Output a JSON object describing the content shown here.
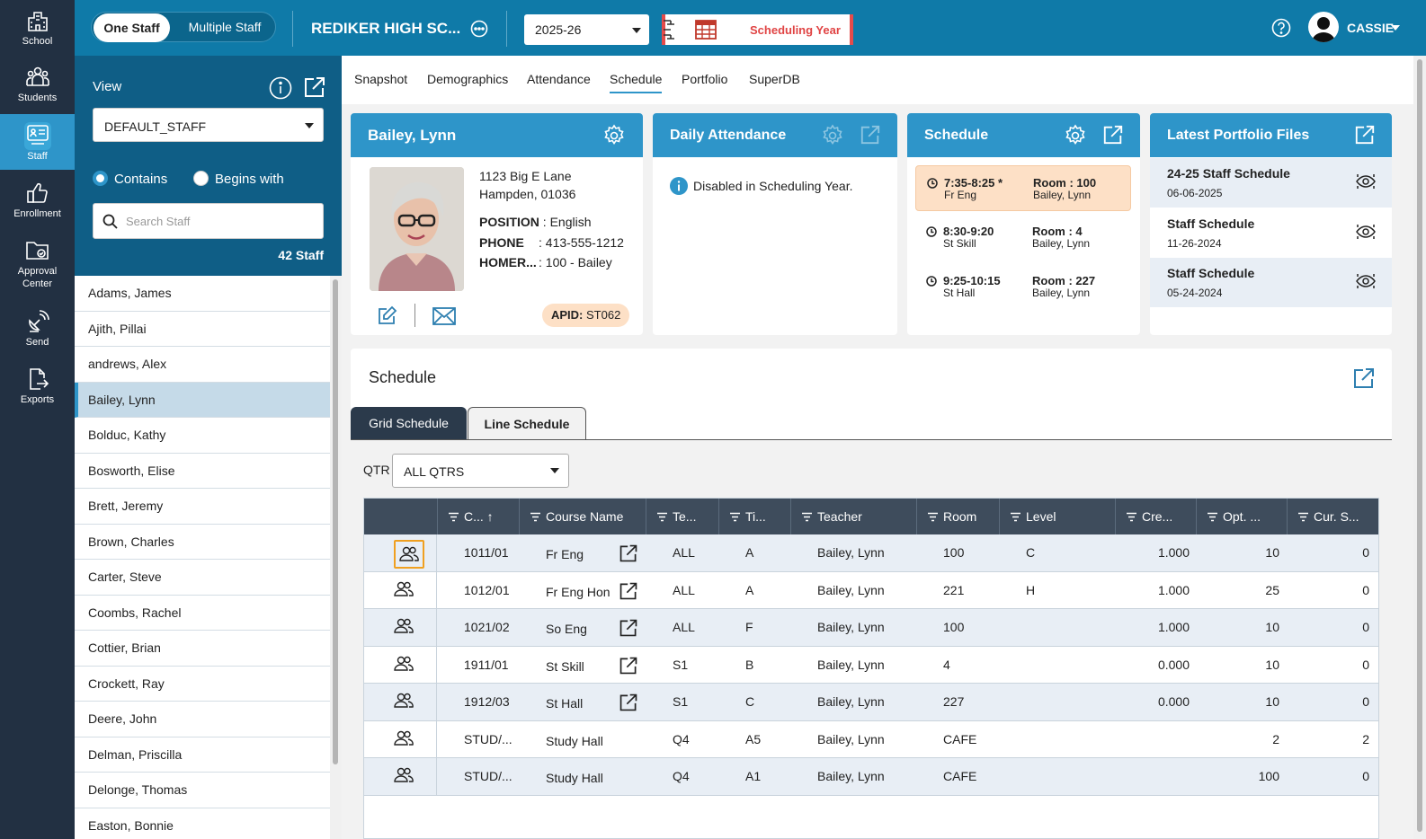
{
  "rail": [
    {
      "label": "School",
      "icon": "school-icon"
    },
    {
      "label": "Students",
      "icon": "students-icon"
    },
    {
      "label": "Staff",
      "icon": "staff-icon"
    },
    {
      "label": "Enrollment",
      "icon": "thumbs-up-icon"
    },
    {
      "label1": "Approval",
      "label2": "Center",
      "icon": "folder-icon"
    },
    {
      "label": "Send",
      "icon": "satellite-icon"
    },
    {
      "label": "Exports",
      "icon": "export-file-icon"
    }
  ],
  "header": {
    "one_staff": "One Staff",
    "multiple_staff": "Multiple Staff",
    "school": "REDIKER HIGH SC...",
    "year": "2025-26",
    "scheduling_year": "Scheduling Year",
    "user": "CASSIE"
  },
  "sidebar": {
    "view_label": "View",
    "view_value": "DEFAULT_STAFF",
    "contains": "Contains",
    "begins_with": "Begins with",
    "search_placeholder": "Search Staff",
    "count": "42 Staff"
  },
  "staff": [
    "Adams, James",
    "Ajith, Pillai",
    "andrews, Alex",
    "Bailey, Lynn",
    "Bolduc, Kathy",
    "Bosworth, Elise",
    "Brett, Jeremy",
    "Brown, Charles",
    "Carter, Steve",
    "Coombs, Rachel",
    "Cottier, Brian",
    "Crockett, Ray",
    "Deere, John",
    "Delman, Priscilla",
    "Delonge, Thomas",
    "Easton, Bonnie"
  ],
  "tabs": [
    "Snapshot",
    "Demographics",
    "Attendance",
    "Schedule",
    "Portfolio",
    "SuperDB"
  ],
  "profile": {
    "name": "Bailey, Lynn",
    "addr1": "1123 Big E Lane",
    "addr2": "Hampden, 01036",
    "position_label": "POSITION",
    "position": ": English",
    "phone_label": "PHONE",
    "phone": ": 413-555-1212",
    "homer_label": "HOMER...",
    "homer": ": 100 - Bailey",
    "apid_label": "APID:",
    "apid": "ST062"
  },
  "attendance": {
    "title": "Daily Attendance",
    "message": "Disabled in Scheduling Year."
  },
  "schedule_card": {
    "title": "Schedule",
    "items": [
      {
        "time": "7:35-8:25 *",
        "course": "Fr Eng",
        "room": "Room : 100",
        "teacher": "Bailey, Lynn"
      },
      {
        "time": "8:30-9:20",
        "course": "St Skill",
        "room": "Room : 4",
        "teacher": "Bailey, Lynn"
      },
      {
        "time": "9:25-10:15",
        "course": "St Hall",
        "room": "Room : 227",
        "teacher": "Bailey, Lynn"
      }
    ]
  },
  "portfolio": {
    "title": "Latest Portfolio Files",
    "files": [
      {
        "name": "24-25 Staff Schedule",
        "date": "06-06-2025"
      },
      {
        "name": "Staff Schedule",
        "date": "11-26-2024"
      },
      {
        "name": "Staff Schedule",
        "date": "05-24-2024"
      }
    ]
  },
  "schedule_panel": {
    "title": "Schedule",
    "tab_grid": "Grid Schedule",
    "tab_line": "Line Schedule",
    "qtr_label": "QTR",
    "qtr_value": "ALL QTRS"
  },
  "columns": [
    "C... ↑",
    "Course Name",
    "Te...",
    "Ti...",
    "Teacher",
    "Room",
    "Level",
    "Cre...",
    "Opt. ...",
    "Cur. S..."
  ],
  "rows": [
    [
      "1011/01",
      "Fr Eng",
      "ALL",
      "A",
      "Bailey, Lynn",
      "100",
      "C",
      "1.000",
      "10",
      "0"
    ],
    [
      "1012/01",
      "Fr Eng Hon",
      "ALL",
      "A",
      "Bailey, Lynn",
      "221",
      "H",
      "1.000",
      "25",
      "0"
    ],
    [
      "1021/02",
      "So Eng",
      "ALL",
      "F",
      "Bailey, Lynn",
      "100",
      "",
      "1.000",
      "10",
      "0"
    ],
    [
      "1911/01",
      "St Skill",
      "S1",
      "B",
      "Bailey, Lynn",
      "4",
      "",
      "0.000",
      "10",
      "0"
    ],
    [
      "1912/03",
      "St Hall",
      "S1",
      "C",
      "Bailey, Lynn",
      "227",
      "",
      "0.000",
      "10",
      "0"
    ],
    [
      "STUD/...",
      "Study Hall",
      "Q4",
      "A5",
      "Bailey, Lynn",
      "CAFE",
      "",
      "",
      "2",
      "2"
    ],
    [
      "STUD/...",
      "Study Hall",
      "Q4",
      "A1",
      "Bailey, Lynn",
      "CAFE",
      "",
      "",
      "100",
      "0"
    ]
  ]
}
